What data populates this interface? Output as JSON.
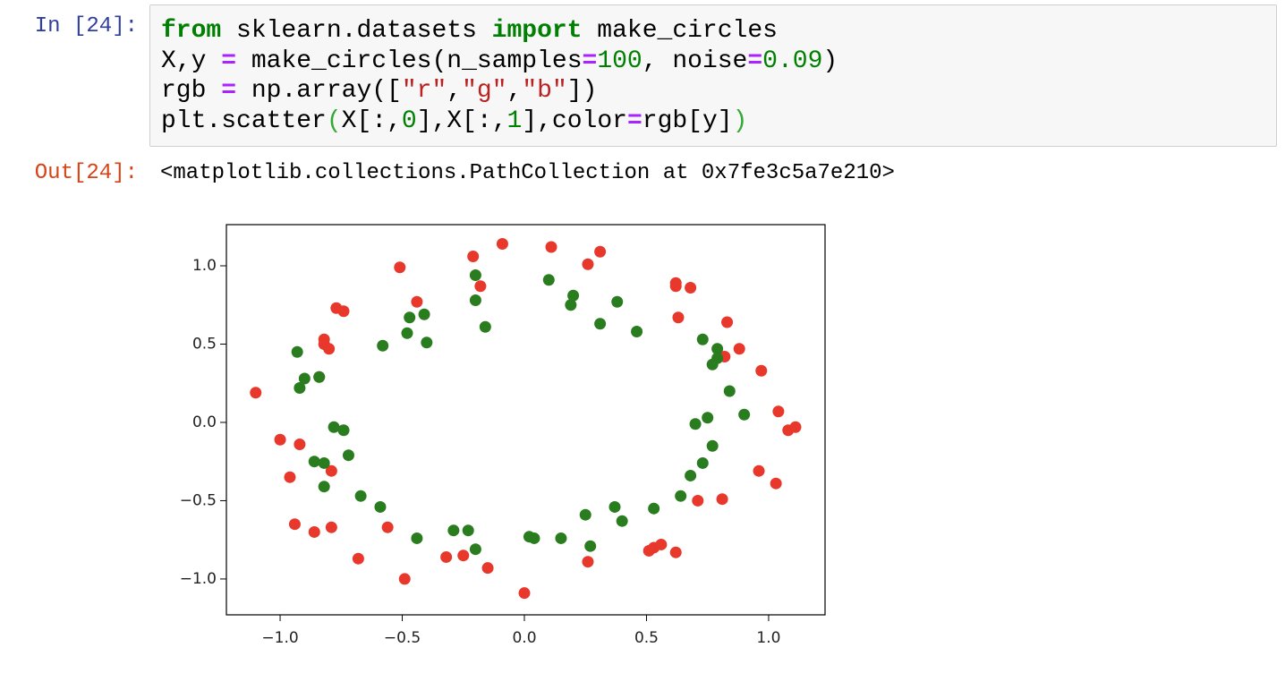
{
  "input": {
    "prompt": "In [24]:",
    "code": [
      [
        "from",
        " sklearn.datasets ",
        "import",
        " make_circles"
      ],
      [
        "X,y ",
        "=",
        " make_circles(n_samples",
        "=",
        "100",
        ", noise",
        "=",
        "0.09",
        ")"
      ],
      [
        "rgb ",
        "=",
        " np.array([",
        "\"r\"",
        ",",
        "\"g\"",
        ",",
        "\"b\"",
        "])"
      ],
      [
        "plt.scatter",
        "(",
        "X[:,",
        "0",
        "],X[:,",
        "1",
        "],color",
        "=",
        "rgb[y]",
        ")"
      ]
    ]
  },
  "output": {
    "prompt": "Out[24]:",
    "text": "<matplotlib.collections.PathCollection at 0x7fe3c5a7e210>"
  },
  "chart_data": {
    "type": "scatter",
    "xlim": [
      -1.22,
      1.231
    ],
    "ylim": [
      -1.229,
      1.263
    ],
    "xticks": [
      {
        "value": -1,
        "label": "−1.0"
      },
      {
        "value": -0.5,
        "label": "−0.5"
      },
      {
        "value": 0,
        "label": "0.0"
      },
      0.5,
      {
        "value": 1,
        "label": "1.0"
      }
    ],
    "yticks": [
      {
        "value": -1,
        "label": "−1.0"
      },
      {
        "value": -0.5,
        "label": "−0.5"
      },
      {
        "value": 0,
        "label": "0.0"
      },
      0.5,
      {
        "value": 1,
        "label": "1.0"
      }
    ],
    "series": [
      {
        "color": "#e8372b",
        "x": [
          -1.1,
          -0.51,
          -0.21,
          -0.09,
          0.11,
          0.31,
          0.26,
          -0.18,
          -0.44,
          -0.77,
          -0.74,
          -0.82,
          -0.82,
          -0.8,
          -0.84,
          0.62,
          0.62,
          0.68,
          0.63,
          0.83,
          0.82,
          0.88,
          0.97,
          1.04,
          1.08,
          1.11,
          -1.0,
          -0.92,
          -0.79,
          -0.96,
          0.96,
          1.03,
          0.71,
          0.81,
          -0.94,
          -0.86,
          -0.79,
          -0.56,
          -0.68,
          -0.49,
          -0.32,
          -0.25,
          -0.15,
          0.0,
          0.26,
          0.51,
          0.53,
          0.56,
          0.62
        ],
        "y": [
          0.19,
          0.99,
          1.06,
          1.14,
          1.12,
          1.09,
          1.01,
          0.87,
          0.77,
          0.73,
          0.71,
          0.53,
          0.5,
          0.47,
          0.29,
          0.87,
          0.89,
          0.86,
          0.67,
          0.64,
          0.42,
          0.47,
          0.33,
          0.07,
          -0.05,
          -0.03,
          -0.11,
          -0.14,
          -0.31,
          -0.35,
          -0.31,
          -0.39,
          -0.5,
          -0.49,
          -0.65,
          -0.7,
          -0.67,
          -0.67,
          -0.87,
          -1.0,
          -0.86,
          -0.85,
          -0.93,
          -1.09,
          -0.89,
          -0.82,
          -0.8,
          -0.78,
          -0.83
        ]
      },
      {
        "color": "#2a7d1f",
        "x": [
          -0.2,
          0.1,
          0.2,
          0.19,
          0.38,
          0.31,
          0.46,
          -0.41,
          -0.47,
          -0.48,
          -0.4,
          -0.58,
          -0.16,
          -0.2,
          -0.93,
          -0.9,
          -0.92,
          -0.84,
          -0.78,
          -0.74,
          -0.72,
          -0.86,
          -0.82,
          -0.82,
          -0.67,
          -0.59,
          0.73,
          0.79,
          0.79,
          0.77,
          0.84,
          0.9,
          0.7,
          0.75,
          0.77,
          0.73,
          0.68,
          0.64,
          0.53,
          0.37,
          0.4,
          0.25,
          -0.44,
          -0.29,
          -0.23,
          -0.2,
          0.02,
          0.04,
          0.15,
          0.27
        ],
        "y": [
          0.94,
          0.91,
          0.81,
          0.75,
          0.77,
          0.63,
          0.58,
          0.69,
          0.67,
          0.57,
          0.51,
          0.49,
          0.61,
          0.78,
          0.45,
          0.28,
          0.22,
          0.29,
          -0.03,
          -0.05,
          -0.21,
          -0.25,
          -0.26,
          -0.41,
          -0.47,
          -0.54,
          0.53,
          0.47,
          0.41,
          0.37,
          0.2,
          0.05,
          -0.01,
          0.03,
          -0.15,
          -0.26,
          -0.34,
          -0.47,
          -0.55,
          -0.54,
          -0.63,
          -0.59,
          -0.74,
          -0.69,
          -0.69,
          -0.81,
          -0.73,
          -0.74,
          -0.74,
          -0.79
        ]
      }
    ]
  }
}
